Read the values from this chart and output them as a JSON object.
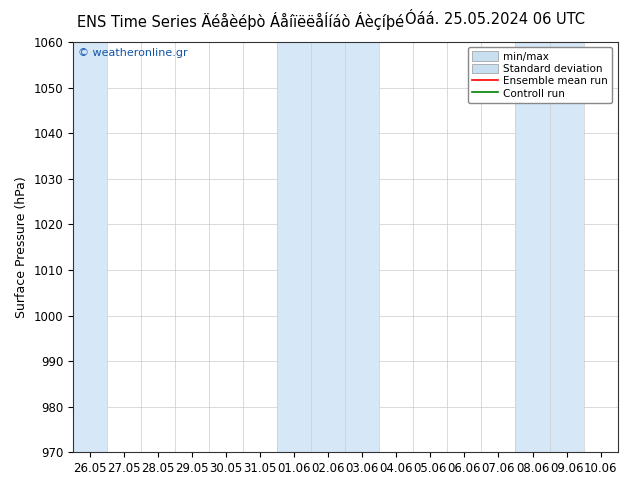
{
  "title_left": "ENS Time Series Äéåèéþò ÁåíïëëåÍíáò Áèçíþé",
  "title_right": "Óáá. 25.05.2024 06 UTC",
  "ylabel": "Surface Pressure (hPa)",
  "ymin": 970,
  "ymax": 1060,
  "ytick_step": 10,
  "x_labels": [
    "26.05",
    "27.05",
    "28.05",
    "29.05",
    "30.05",
    "31.05",
    "01.06",
    "02.06",
    "03.06",
    "04.06",
    "05.06",
    "06.06",
    "07.06",
    "08.06",
    "09.06",
    "10.06"
  ],
  "watermark": "© weatheronline.gr",
  "fig_bg": "#ffffff",
  "plot_bg": "#ffffff",
  "band_color": "#d6e8f7",
  "title_fontsize": 10.5,
  "ylabel_fontsize": 9,
  "tick_fontsize": 8.5,
  "watermark_color": "#1155aa"
}
